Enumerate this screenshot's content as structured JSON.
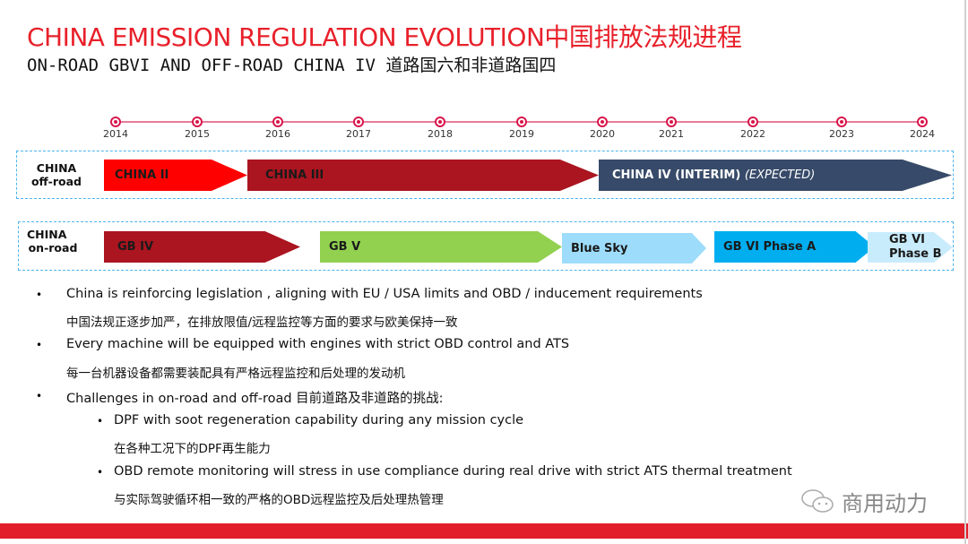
{
  "title": "CHINA EMISSION REGULATION EVOLUTION中国排放法规进程",
  "subtitle": "ON-ROAD GBVI AND OFF-ROAD CHINA IV 道路国六和非道路国四",
  "timeline": {
    "years": [
      "2014",
      "2015",
      "2016",
      "2017",
      "2018",
      "2019",
      "2020",
      "2021",
      "2022",
      "2023",
      "2024"
    ],
    "color": "#d8164a"
  },
  "offroad": {
    "label_line1": "CHINA",
    "label_line2": "off-road",
    "stages": [
      {
        "label": "CHINA II",
        "color": "#ff0000"
      },
      {
        "label": "CHINA III",
        "color": "#aa1520"
      },
      {
        "label": "CHINA IV (INTERIM)",
        "extra": "(EXPECTED)",
        "color": "#374a69"
      }
    ]
  },
  "onroad": {
    "label_line1": "CHINA",
    "label_line2": "on-road",
    "stages": [
      {
        "label": "GB IV",
        "color": "#aa1520"
      },
      {
        "label": "GB V",
        "color": "#92d050"
      },
      {
        "label": "Blue Sky",
        "color": "#9ddcfb"
      },
      {
        "label": "GB VI Phase A",
        "color": "#00aeef"
      },
      {
        "label_line1": "GB VI",
        "label_line2": "Phase B",
        "color": "#c9ecfc"
      }
    ]
  },
  "bullets": [
    {
      "en": "China is reinforcing legislation , aligning with EU / USA limits and OBD / inducement requirements",
      "cn": "中国法规正逐步加严，在排放限值/远程监控等方面的要求与欧美保持一致"
    },
    {
      "en": "Every machine will be equipped with engines with strict OBD control and ATS",
      "cn": "每一台机器设备都需要装配具有严格远程监控和后处理的发动机"
    },
    {
      "en": "Challenges in on-road and off-road 目前道路及非道路的挑战:"
    }
  ],
  "subbullets": [
    {
      "en": "DPF with soot regeneration capability during any mission cycle",
      "cn": "在各种工况下的DPF再生能力"
    },
    {
      "en": "OBD remote monitoring  will stress in use compliance during real drive  with strict ATS thermal treatment",
      "cn": "与实际驾驶循环相一致的严格的OBD远程监控及后处理热管理"
    }
  ],
  "watermark": {
    "icon": "wechat-icon",
    "text": "商用动力"
  },
  "accent": "#e31e2b"
}
